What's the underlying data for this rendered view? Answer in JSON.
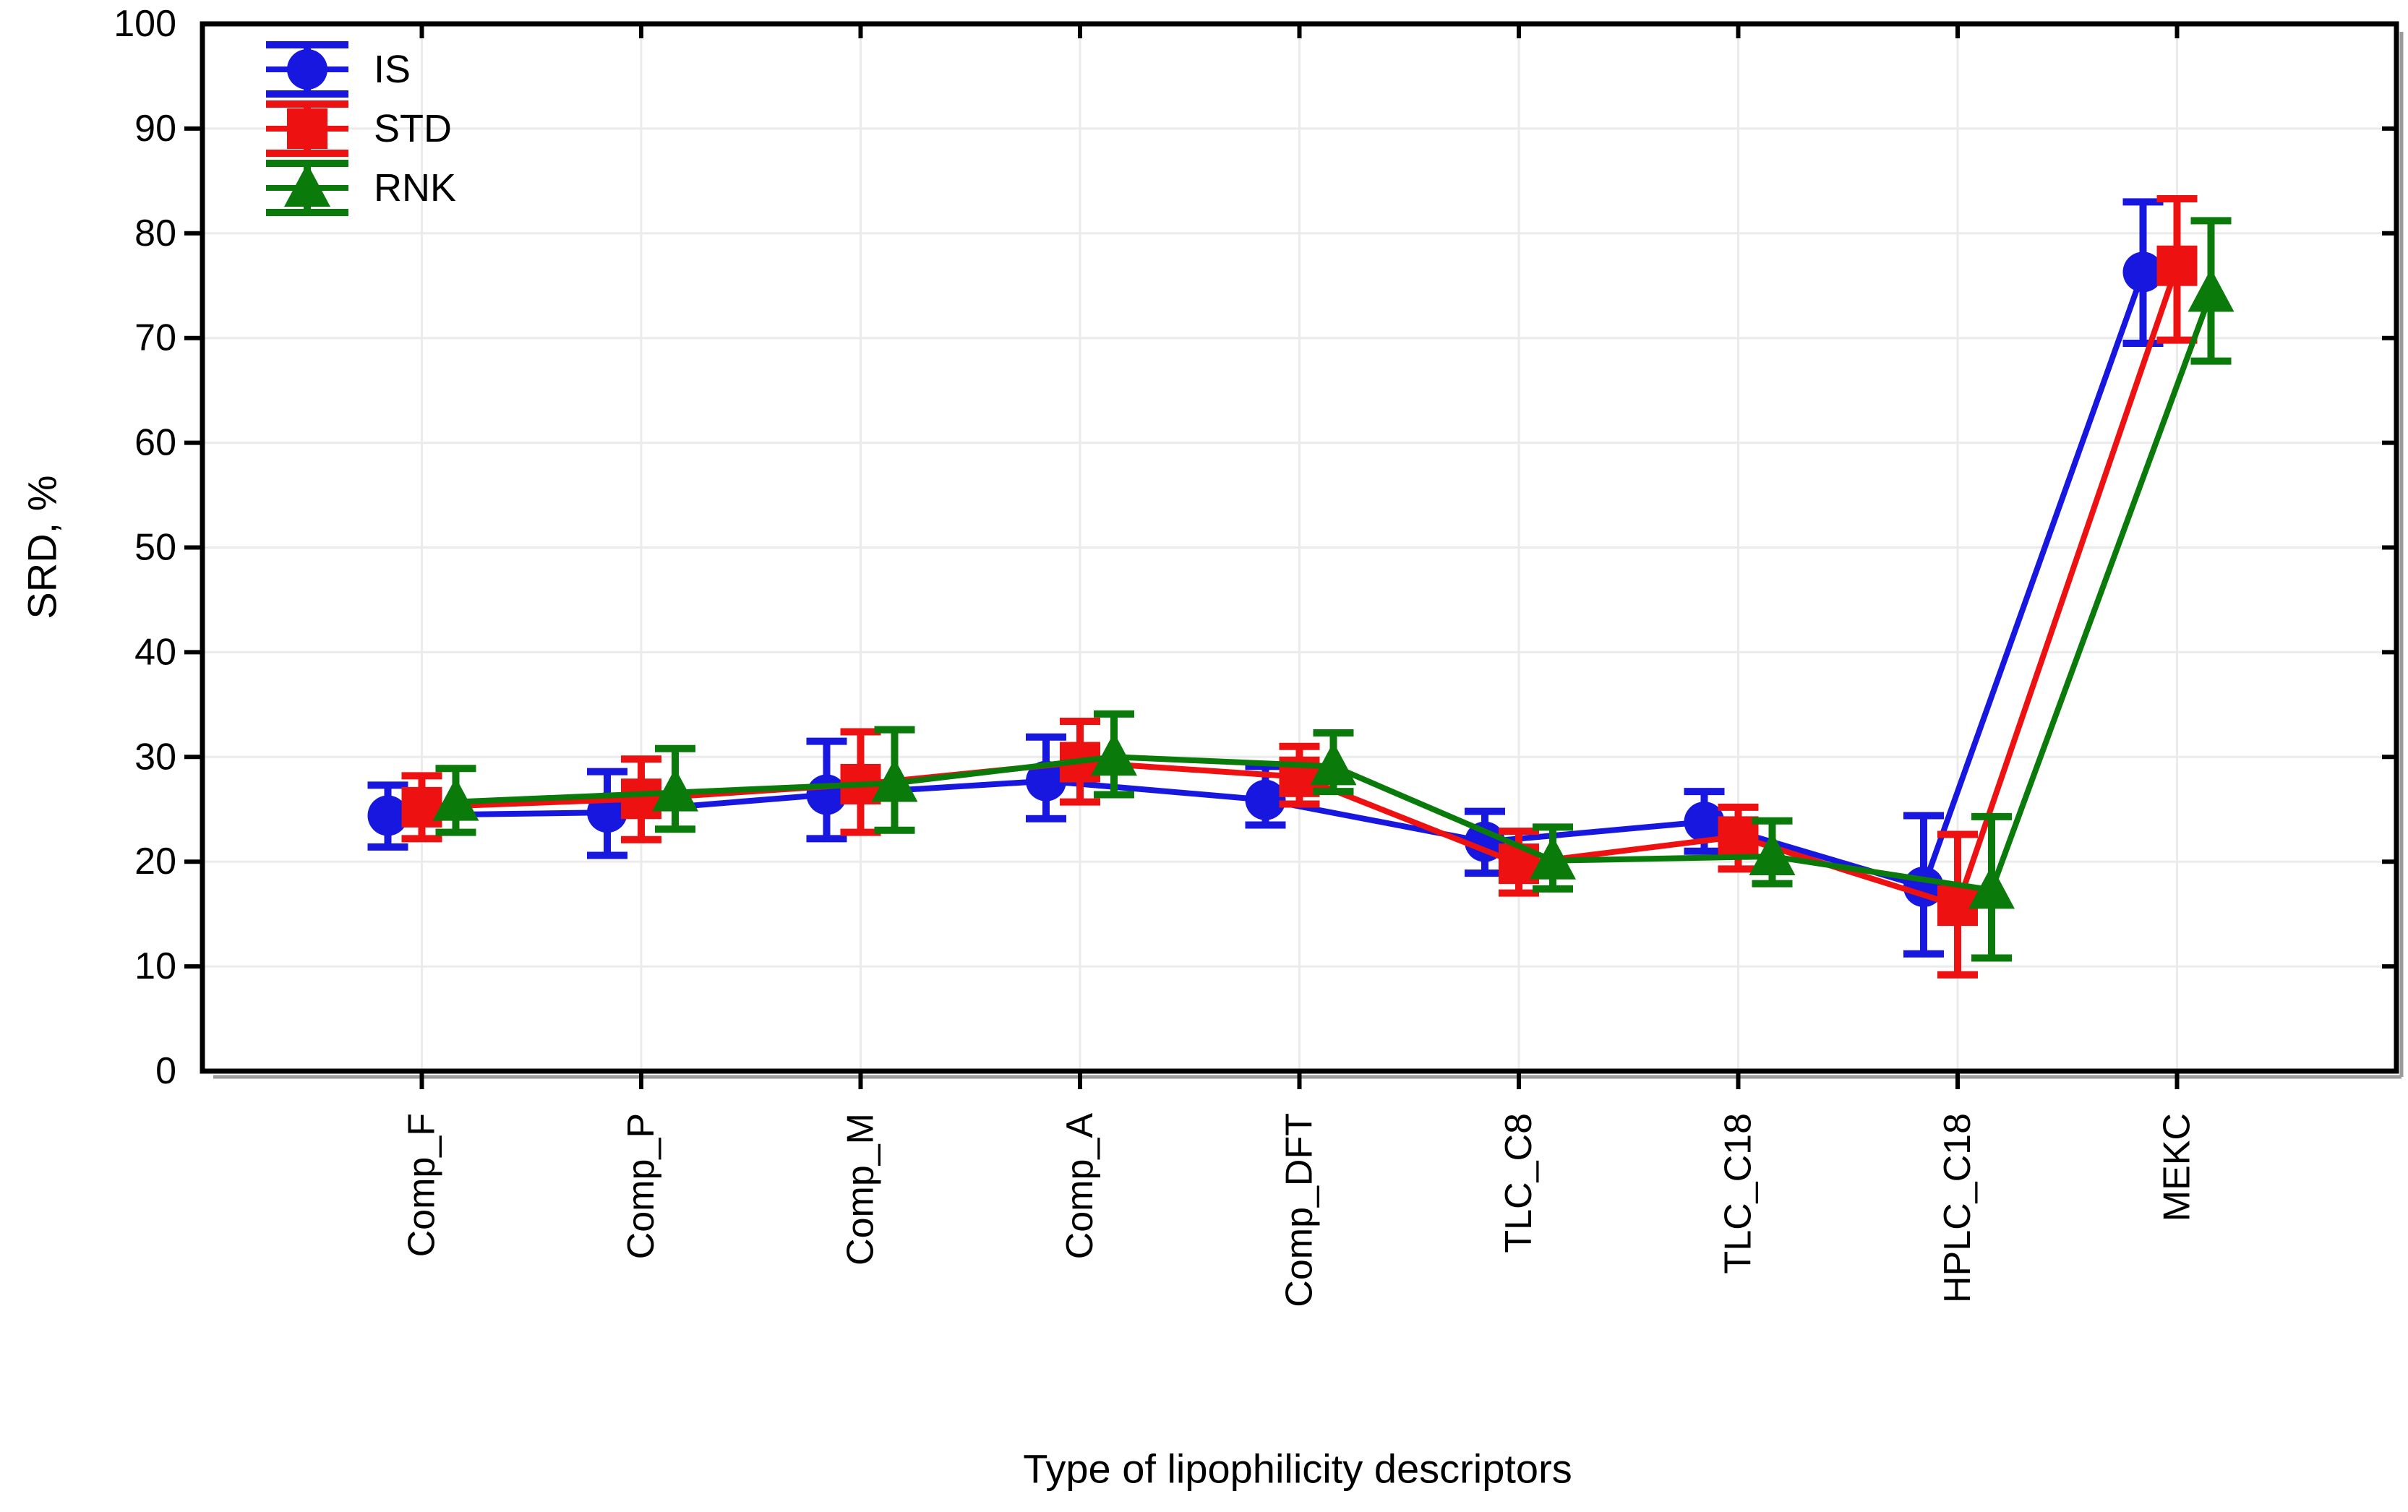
{
  "figure": {
    "background": "#ffffff"
  },
  "chart_data": {
    "type": "line",
    "title": "",
    "xlabel": "Type of lipophilicity descriptors",
    "ylabel": "SRD, %",
    "ylim": [
      0,
      100
    ],
    "ytick_step": 10,
    "grid": true,
    "legend_position": "top-left-inside",
    "error_bars": true,
    "categories": [
      "Comp_F",
      "Comp_P",
      "Comp_M",
      "Comp_A",
      "Comp_DFT",
      "TLC_C8",
      "TLC_C18",
      "HPLC_C18",
      "MEKC"
    ],
    "series": [
      {
        "name": "IS",
        "marker": "circle",
        "color": "#1717e0",
        "values": [
          24.4,
          24.7,
          26.4,
          27.7,
          25.9,
          21.9,
          23.8,
          17.6,
          76.3
        ],
        "err_low": [
          21.4,
          20.6,
          22.2,
          24.1,
          23.5,
          18.9,
          21.0,
          11.2,
          69.5
        ],
        "err_high": [
          27.3,
          28.6,
          31.5,
          31.9,
          29.1,
          24.8,
          26.7,
          24.4,
          83.0
        ]
      },
      {
        "name": "STD",
        "marker": "square",
        "color": "#ee1111",
        "values": [
          25.2,
          26.0,
          27.4,
          29.5,
          28.1,
          19.8,
          22.4,
          15.8,
          76.9
        ],
        "err_low": [
          22.2,
          22.1,
          22.8,
          25.7,
          25.5,
          17.0,
          19.3,
          9.2,
          69.8
        ],
        "err_high": [
          28.2,
          29.8,
          32.4,
          33.4,
          31.0,
          22.9,
          25.2,
          22.6,
          83.3
        ]
      },
      {
        "name": "RNK",
        "marker": "triangle-up",
        "color": "#0a7a0a",
        "values": [
          25.7,
          26.6,
          27.5,
          30.0,
          29.1,
          20.1,
          20.5,
          17.3,
          74.3
        ],
        "err_low": [
          22.8,
          23.1,
          23.0,
          26.4,
          26.7,
          17.4,
          17.9,
          10.8,
          67.8
        ],
        "err_high": [
          28.9,
          30.8,
          32.6,
          34.1,
          32.3,
          23.3,
          23.9,
          24.3,
          81.2
        ]
      }
    ]
  },
  "colors": {
    "grid": "#ebebeb",
    "axis": "#000000",
    "text": "#000000",
    "frame_shadow": "#9b9b9b"
  }
}
